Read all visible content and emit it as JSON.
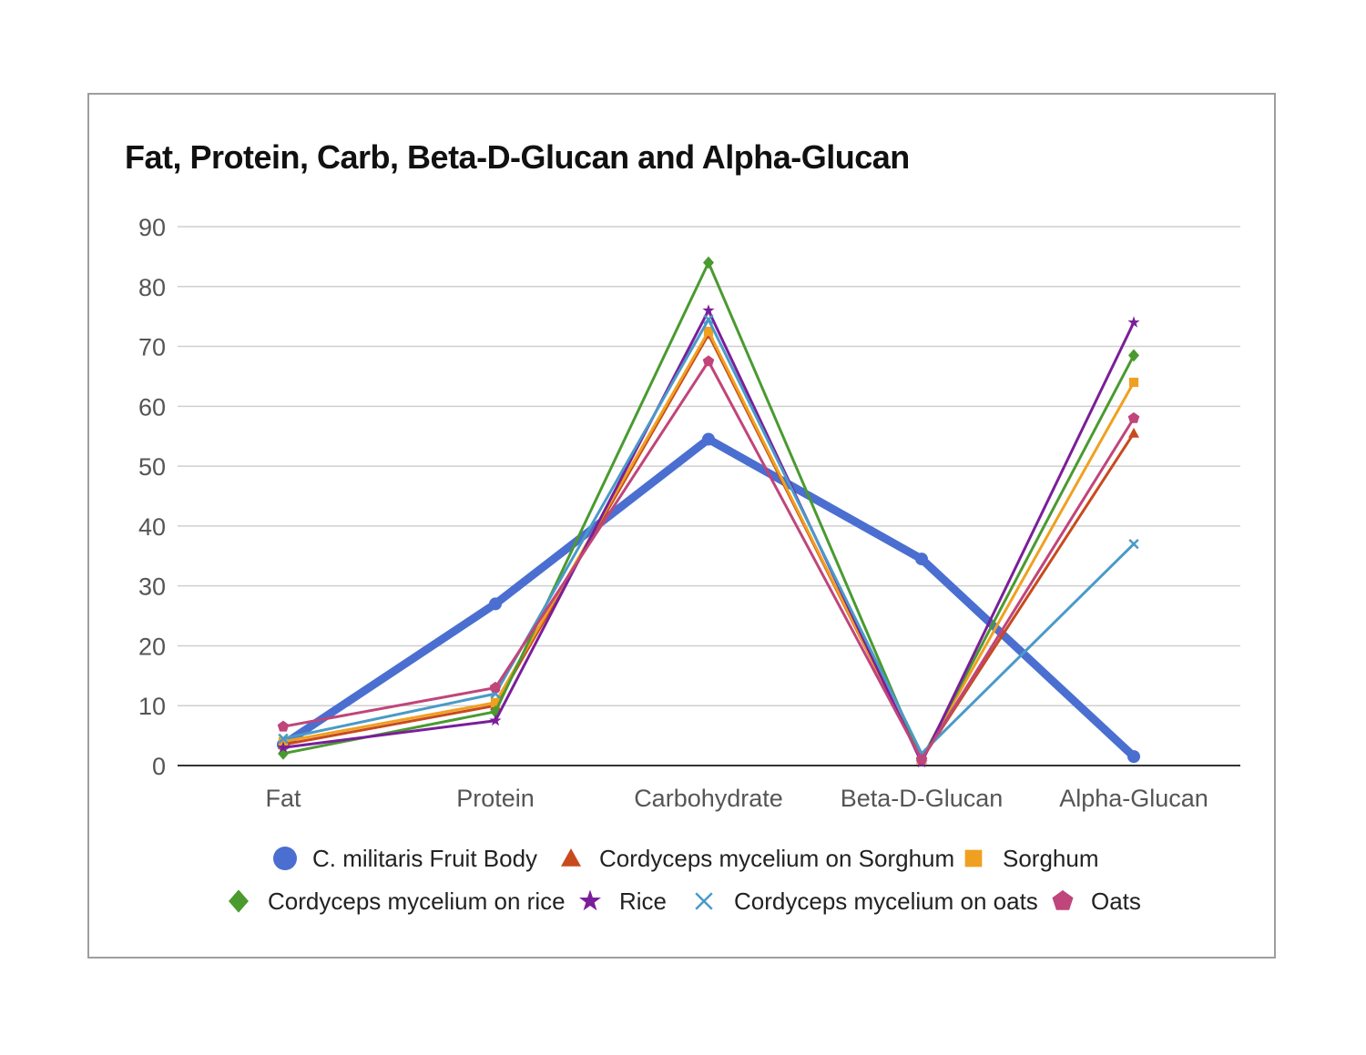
{
  "chart_data": {
    "type": "line",
    "title": "Fat, Protein, Carb, Beta-D-Glucan and Alpha-Glucan",
    "xlabel": "",
    "ylabel": "",
    "categories": [
      "Fat",
      "Protein",
      "Carbohydrate",
      "Beta-D-Glucan",
      "Alpha-Glucan"
    ],
    "ylim": [
      0,
      90
    ],
    "yticks": [
      0,
      10,
      20,
      30,
      40,
      50,
      60,
      70,
      80,
      90
    ],
    "grid": true,
    "legend_position": "bottom",
    "series": [
      {
        "name": "C. militaris Fruit Body",
        "color": "#4a6fd0",
        "marker": "circle",
        "width": 9,
        "values": [
          3.5,
          27,
          54.5,
          34.5,
          1.5
        ]
      },
      {
        "name": "Cordyceps mycelium on Sorghum",
        "color": "#c84a1e",
        "marker": "triangle",
        "width": 3,
        "values": [
          3.5,
          10,
          72,
          1,
          55.5
        ]
      },
      {
        "name": "Sorghum",
        "color": "#f0a020",
        "marker": "square",
        "width": 3,
        "values": [
          4,
          10.5,
          72.5,
          1,
          64
        ]
      },
      {
        "name": "Cordyceps mycelium on rice",
        "color": "#4a9a30",
        "marker": "diamond",
        "width": 3,
        "values": [
          2,
          9,
          84,
          1,
          68.5
        ]
      },
      {
        "name": "Rice",
        "color": "#7a1e9a",
        "marker": "star",
        "width": 3,
        "values": [
          3,
          7.5,
          76,
          0.5,
          74
        ]
      },
      {
        "name": "Cordyceps mycelium on oats",
        "color": "#4a9ac8",
        "marker": "x",
        "width": 3,
        "values": [
          4.5,
          12,
          74.5,
          2,
          37
        ]
      },
      {
        "name": "Oats",
        "color": "#c0457a",
        "marker": "pentagon",
        "width": 3,
        "values": [
          6.5,
          13,
          67.5,
          1,
          58
        ]
      }
    ]
  }
}
